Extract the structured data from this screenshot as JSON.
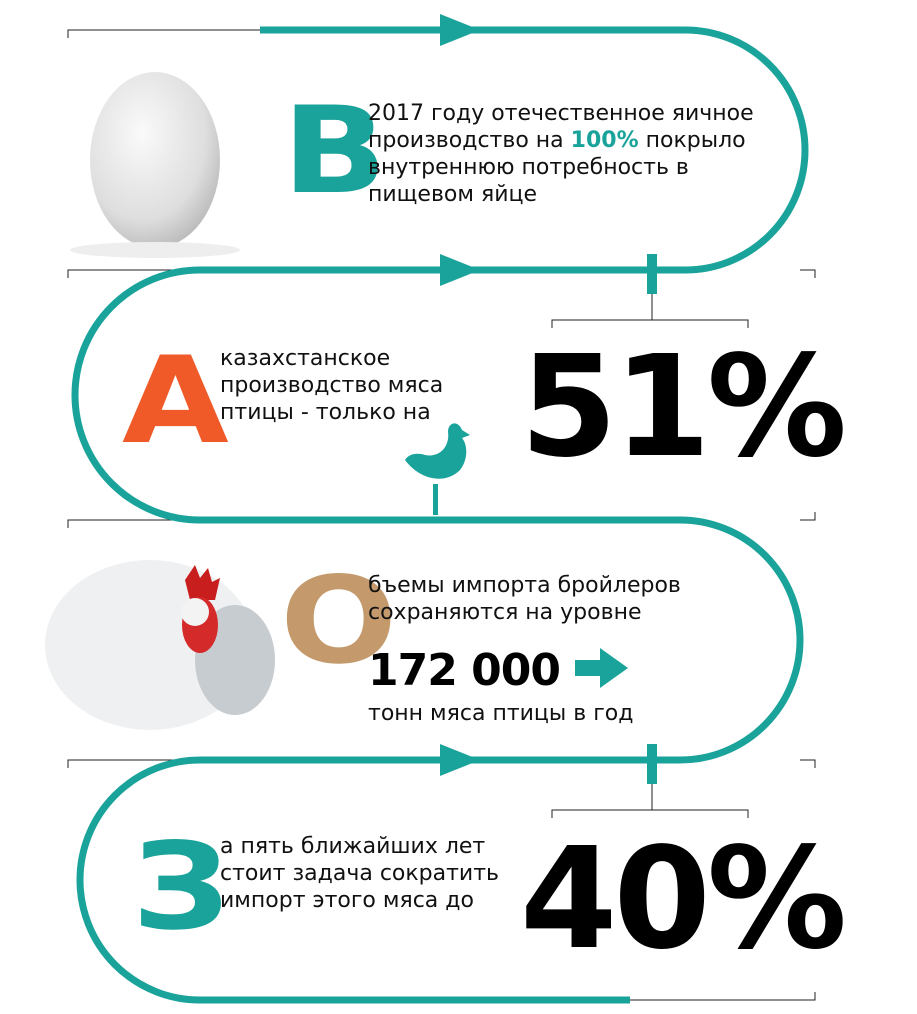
{
  "sections": [
    {
      "letter": "В",
      "text_before": "2017 году отечественное яичное производство на",
      "highlight": "100%",
      "text_after": "покрыло внутреннюю потребность в пищевом яйце"
    },
    {
      "letter": "А",
      "text": "казахстанское производство мяса птицы - только на",
      "big": "51%"
    },
    {
      "letter": "О",
      "text": "бъемы импорта бройлеров сохраняются на уровне",
      "number": "172 000",
      "unit": "тонн мяса птицы в год"
    },
    {
      "letter": "З",
      "text": "а пять ближайших лет стоит задача сократить импорт этого мяса до",
      "big": "40%"
    }
  ]
}
